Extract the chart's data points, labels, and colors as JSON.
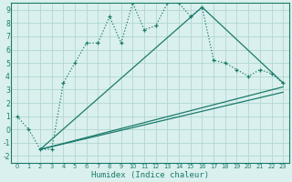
{
  "xlabel": "Humidex (Indice chaleur)",
  "bg_color": "#daf0ee",
  "grid_color": "#b0d8d0",
  "line_color": "#1a7a6a",
  "xlim": [
    -0.5,
    23.5
  ],
  "ylim": [
    -2.5,
    9.5
  ],
  "xticks": [
    0,
    1,
    2,
    3,
    4,
    5,
    6,
    7,
    8,
    9,
    10,
    11,
    12,
    13,
    14,
    15,
    16,
    17,
    18,
    19,
    20,
    21,
    22,
    23
  ],
  "yticks": [
    -2,
    -1,
    0,
    1,
    2,
    3,
    4,
    5,
    6,
    7,
    8,
    9
  ],
  "series1_x": [
    0,
    1,
    2,
    3,
    4,
    5,
    6,
    7,
    8,
    9,
    10,
    11,
    12,
    13,
    14,
    15,
    16,
    17,
    18,
    19,
    20,
    21,
    22,
    23
  ],
  "series1_y": [
    1.0,
    0.0,
    -1.5,
    -1.5,
    3.5,
    5.0,
    6.5,
    6.5,
    8.5,
    6.5,
    9.5,
    7.5,
    7.8,
    9.5,
    9.5,
    8.5,
    9.2,
    5.2,
    5.0,
    4.5,
    4.0,
    4.5,
    4.2,
    3.5
  ],
  "line2_x": [
    2,
    16,
    23
  ],
  "line2_y": [
    -1.5,
    9.2,
    3.5
  ],
  "line3_x": [
    2,
    23
  ],
  "line3_y": [
    -1.5,
    3.2
  ],
  "line4_x": [
    2,
    23
  ],
  "line4_y": [
    -1.5,
    2.8
  ]
}
